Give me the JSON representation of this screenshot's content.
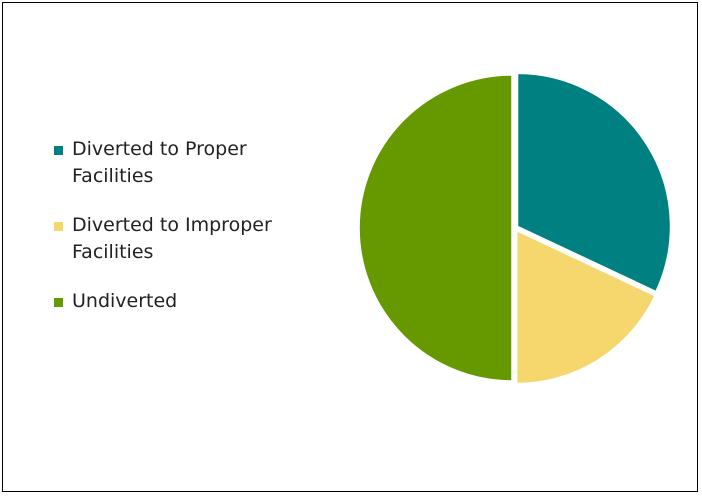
{
  "chart_data": {
    "type": "pie",
    "categories": [
      "Diverted to Proper Facilities",
      "Diverted to Improper Facilities",
      "Undiverted"
    ],
    "values": [
      32,
      18,
      50
    ],
    "colors": [
      "#008080",
      "#f5d76e",
      "#669900"
    ],
    "legend": "left"
  }
}
